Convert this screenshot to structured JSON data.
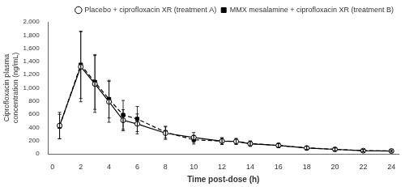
{
  "chart_data": {
    "type": "line",
    "xlabel": "Time post-dose (h)",
    "ylabel": "Ciprofloxacin plasma\nconcentration (ng/mL)",
    "x": [
      0.5,
      2,
      3,
      4,
      5,
      6,
      8,
      10,
      12,
      13,
      14,
      16,
      18,
      20,
      22,
      24
    ],
    "series": [
      {
        "name": "Placebo + ciprofloxacin XR (treatment A)",
        "color": "#000000",
        "marker": "circle",
        "line_style": "solid",
        "values": [
          430,
          1320,
          1060,
          790,
          510,
          455,
          315,
          250,
          195,
          190,
          155,
          130,
          90,
          70,
          50,
          45
        ],
        "errors": [
          200,
          530,
          430,
          310,
          160,
          150,
          95,
          75,
          50,
          45,
          40,
          32,
          28,
          22,
          18,
          15
        ]
      },
      {
        "name": "MMX mesalamine + ciprofloxacin XR (treatment B)",
        "color": "#000000",
        "marker": "square",
        "line_style": "dashed",
        "values": [
          415,
          1350,
          1090,
          830,
          590,
          530,
          330,
          215,
          195,
          190,
          158,
          128,
          93,
          70,
          50,
          45
        ],
        "errors": [
          185,
          510,
          415,
          285,
          220,
          190,
          90,
          65,
          50,
          42,
          38,
          30,
          25,
          20,
          16,
          14
        ]
      }
    ],
    "xlim": [
      -0.3,
      24.5
    ],
    "xticks": [
      0,
      2,
      4,
      6,
      8,
      10,
      12,
      14,
      16,
      18,
      20,
      22,
      24
    ],
    "ylim": [
      0,
      2000
    ],
    "yticks": [
      0,
      200,
      400,
      600,
      800,
      {
        "value": 1000,
        "label": "1,000"
      },
      {
        "value": 1200,
        "label": "1,200"
      },
      {
        "value": 1400,
        "label": "1,400"
      },
      {
        "value": 1600,
        "label": "1,600"
      },
      {
        "value": 1800,
        "label": "1,800"
      },
      {
        "value": 2000,
        "label": "2,000"
      }
    ],
    "grid": false,
    "legend": "upper right"
  }
}
